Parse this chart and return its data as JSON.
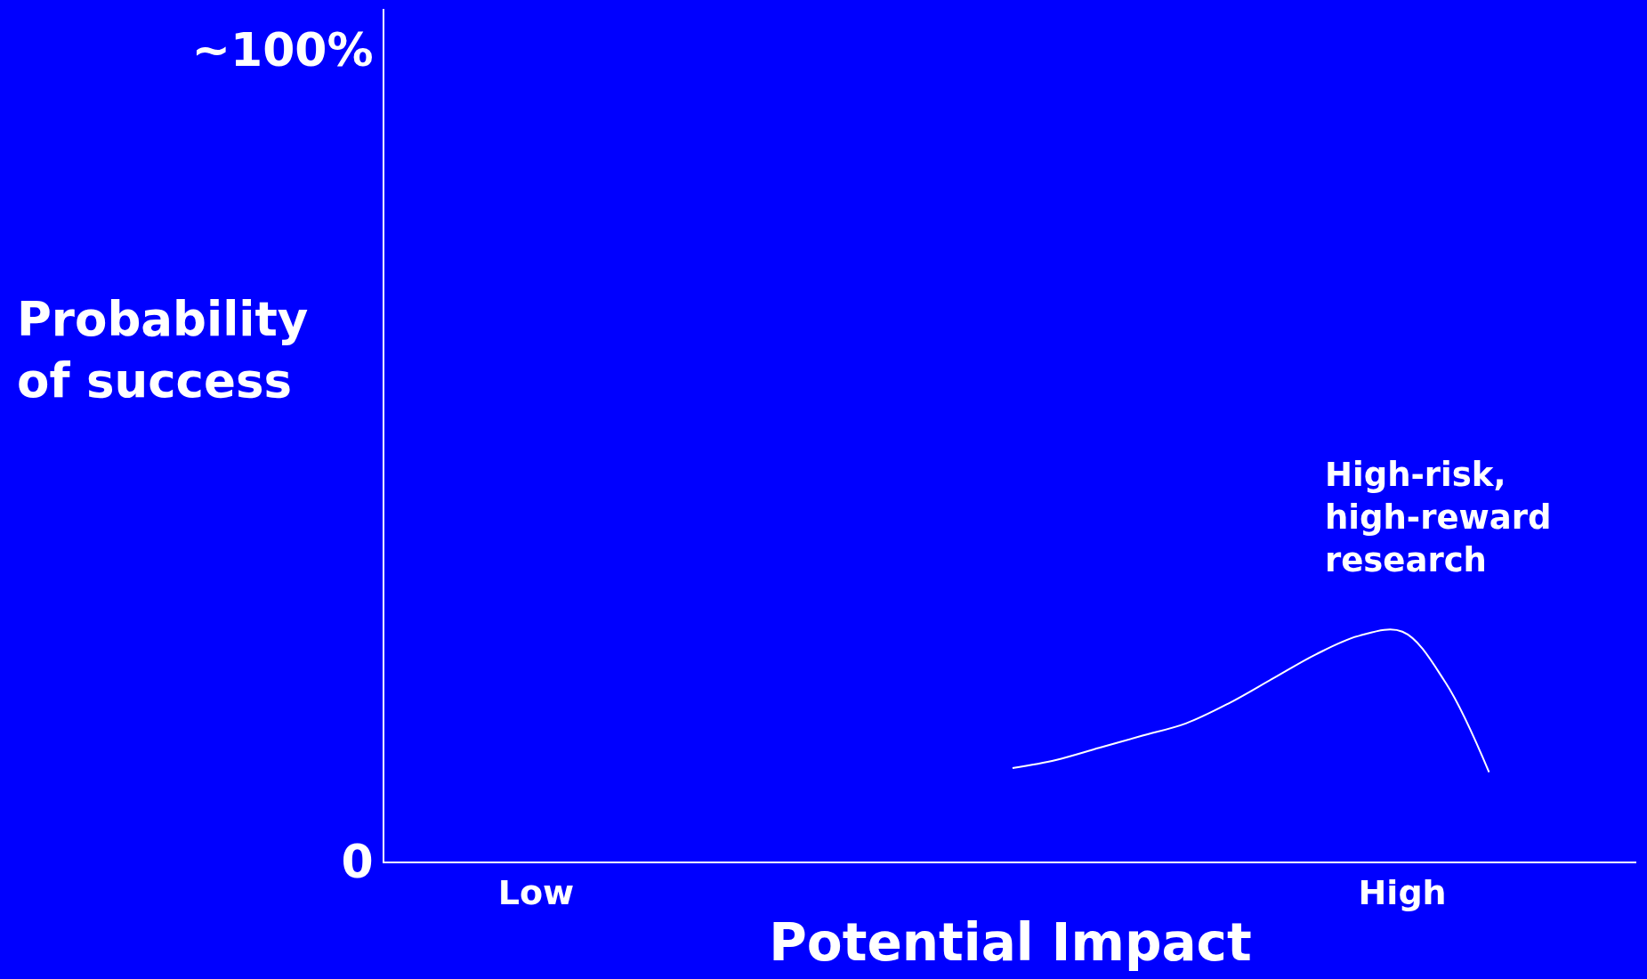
{
  "chart_data": {
    "type": "line",
    "xlabel": "Potential Impact",
    "ylabel": "Probability of success",
    "categories": [
      "Low",
      null,
      null,
      null,
      null,
      null,
      null,
      null,
      null,
      null,
      null,
      null,
      null,
      null,
      null,
      null,
      null,
      null,
      null,
      null,
      "High",
      null,
      null,
      null,
      null,
      null
    ],
    "series": [
      {
        "color": "#ffffff",
        "values": [
          null,
          null,
          null,
          null,
          null,
          null,
          null,
          null,
          null,
          null,
          null,
          11.5,
          12.5,
          14,
          15.5,
          17,
          19.5,
          22.5,
          25.5,
          27.8,
          28.3,
          22,
          11,
          null,
          null,
          null
        ]
      }
    ],
    "ylim": [
      0,
      105
    ],
    "yticks": [
      {
        "value": 0,
        "label": "0"
      },
      {
        "value": 100,
        "label": "~100%"
      }
    ],
    "annotations": [
      "High-risk,\nhigh-reward\nresearch"
    ],
    "grid": false,
    "marker": "none",
    "line_style": "solid"
  }
}
